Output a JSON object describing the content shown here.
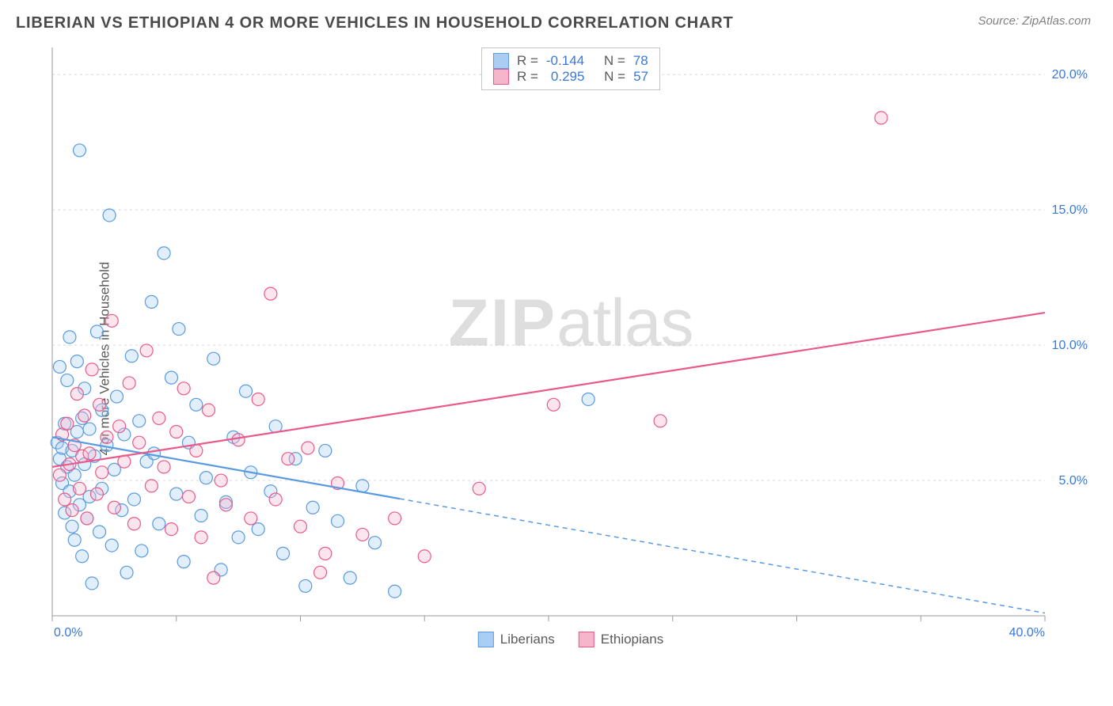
{
  "header": {
    "title": "LIBERIAN VS ETHIOPIAN 4 OR MORE VEHICLES IN HOUSEHOLD CORRELATION CHART",
    "source": "Source: ZipAtlas.com"
  },
  "chart": {
    "type": "scatter",
    "ylabel": "4 or more Vehicles in Household",
    "watermark_zip": "ZIP",
    "watermark_atlas": "atlas",
    "xlim": [
      0,
      40
    ],
    "ylim": [
      0,
      21
    ],
    "x_ticks": [
      0,
      5,
      10,
      15,
      20,
      25,
      30,
      35,
      40
    ],
    "x_tick_labels": [
      "0.0%",
      "",
      "",
      "",
      "",
      "",
      "",
      "",
      "40.0%"
    ],
    "y_ticks": [
      5,
      10,
      15,
      20
    ],
    "y_tick_labels": [
      "5.0%",
      "10.0%",
      "15.0%",
      "20.0%"
    ],
    "grid_color": "#d8d8d8",
    "axis_color": "#9a9a9a",
    "background_color": "#ffffff",
    "marker_radius": 8,
    "marker_stroke_width": 1.2,
    "marker_fill_opacity": 0.35,
    "trend_line_width": 2.2,
    "x_tick_label_color": "#3a78d6",
    "y_tick_label_color": "#3a78d6",
    "tick_label_fontsize": 16
  },
  "series": {
    "liberians": {
      "label": "Liberians",
      "color_stroke": "#5a9ae0",
      "color_fill": "#a9cdf3",
      "R": "-0.144",
      "N": "78",
      "trend": {
        "x1": 0,
        "y1": 6.6,
        "x2": 40,
        "y2": 0.1,
        "solid_until_x": 14
      },
      "points": [
        [
          0.2,
          6.4
        ],
        [
          0.3,
          5.8
        ],
        [
          0.3,
          9.2
        ],
        [
          0.4,
          4.9
        ],
        [
          0.4,
          6.2
        ],
        [
          0.5,
          7.1
        ],
        [
          0.5,
          3.8
        ],
        [
          0.6,
          5.5
        ],
        [
          0.6,
          8.7
        ],
        [
          0.7,
          10.3
        ],
        [
          0.7,
          4.6
        ],
        [
          0.8,
          3.3
        ],
        [
          0.8,
          6.1
        ],
        [
          0.9,
          2.8
        ],
        [
          0.9,
          5.2
        ],
        [
          1.0,
          9.4
        ],
        [
          1.0,
          6.8
        ],
        [
          1.1,
          17.2
        ],
        [
          1.1,
          4.1
        ],
        [
          1.2,
          7.3
        ],
        [
          1.2,
          2.2
        ],
        [
          1.3,
          5.6
        ],
        [
          1.3,
          8.4
        ],
        [
          1.4,
          3.6
        ],
        [
          1.5,
          6.9
        ],
        [
          1.5,
          4.4
        ],
        [
          1.6,
          1.2
        ],
        [
          1.7,
          5.9
        ],
        [
          1.8,
          10.5
        ],
        [
          1.9,
          3.1
        ],
        [
          2.0,
          7.6
        ],
        [
          2.0,
          4.7
        ],
        [
          2.2,
          6.3
        ],
        [
          2.3,
          14.8
        ],
        [
          2.4,
          2.6
        ],
        [
          2.5,
          5.4
        ],
        [
          2.6,
          8.1
        ],
        [
          2.8,
          3.9
        ],
        [
          2.9,
          6.7
        ],
        [
          3.0,
          1.6
        ],
        [
          3.2,
          9.6
        ],
        [
          3.3,
          4.3
        ],
        [
          3.5,
          7.2
        ],
        [
          3.6,
          2.4
        ],
        [
          3.8,
          5.7
        ],
        [
          4.0,
          11.6
        ],
        [
          4.1,
          6.0
        ],
        [
          4.3,
          3.4
        ],
        [
          4.5,
          13.4
        ],
        [
          4.8,
          8.8
        ],
        [
          5.0,
          4.5
        ],
        [
          5.1,
          10.6
        ],
        [
          5.3,
          2.0
        ],
        [
          5.5,
          6.4
        ],
        [
          5.8,
          7.8
        ],
        [
          6.0,
          3.7
        ],
        [
          6.2,
          5.1
        ],
        [
          6.5,
          9.5
        ],
        [
          6.8,
          1.7
        ],
        [
          7.0,
          4.2
        ],
        [
          7.3,
          6.6
        ],
        [
          7.5,
          2.9
        ],
        [
          7.8,
          8.3
        ],
        [
          8.0,
          5.3
        ],
        [
          8.3,
          3.2
        ],
        [
          8.8,
          4.6
        ],
        [
          9.0,
          7.0
        ],
        [
          9.3,
          2.3
        ],
        [
          9.8,
          5.8
        ],
        [
          10.2,
          1.1
        ],
        [
          10.5,
          4.0
        ],
        [
          11.0,
          6.1
        ],
        [
          11.5,
          3.5
        ],
        [
          12.0,
          1.4
        ],
        [
          12.5,
          4.8
        ],
        [
          13.0,
          2.7
        ],
        [
          13.8,
          0.9
        ],
        [
          21.6,
          8.0
        ]
      ]
    },
    "ethiopians": {
      "label": "Ethiopians",
      "color_stroke": "#e85a8a",
      "color_fill": "#f5b5cb",
      "R": "0.295",
      "N": "57",
      "trend": {
        "x1": 0,
        "y1": 5.5,
        "x2": 40,
        "y2": 11.2,
        "solid_until_x": 40
      },
      "points": [
        [
          0.3,
          5.2
        ],
        [
          0.4,
          6.7
        ],
        [
          0.5,
          4.3
        ],
        [
          0.6,
          7.1
        ],
        [
          0.7,
          5.6
        ],
        [
          0.8,
          3.9
        ],
        [
          0.9,
          6.3
        ],
        [
          1.0,
          8.2
        ],
        [
          1.1,
          4.7
        ],
        [
          1.2,
          5.9
        ],
        [
          1.3,
          7.4
        ],
        [
          1.4,
          3.6
        ],
        [
          1.5,
          6.0
        ],
        [
          1.6,
          9.1
        ],
        [
          1.8,
          4.5
        ],
        [
          1.9,
          7.8
        ],
        [
          2.0,
          5.3
        ],
        [
          2.2,
          6.6
        ],
        [
          2.4,
          10.9
        ],
        [
          2.5,
          4.0
        ],
        [
          2.7,
          7.0
        ],
        [
          2.9,
          5.7
        ],
        [
          3.1,
          8.6
        ],
        [
          3.3,
          3.4
        ],
        [
          3.5,
          6.4
        ],
        [
          3.8,
          9.8
        ],
        [
          4.0,
          4.8
        ],
        [
          4.3,
          7.3
        ],
        [
          4.5,
          5.5
        ],
        [
          4.8,
          3.2
        ],
        [
          5.0,
          6.8
        ],
        [
          5.3,
          8.4
        ],
        [
          5.5,
          4.4
        ],
        [
          5.8,
          6.1
        ],
        [
          6.0,
          2.9
        ],
        [
          6.3,
          7.6
        ],
        [
          6.8,
          5.0
        ],
        [
          7.0,
          4.1
        ],
        [
          7.5,
          6.5
        ],
        [
          8.0,
          3.6
        ],
        [
          8.3,
          8.0
        ],
        [
          8.8,
          11.9
        ],
        [
          9.0,
          4.3
        ],
        [
          9.5,
          5.8
        ],
        [
          10.0,
          3.3
        ],
        [
          10.3,
          6.2
        ],
        [
          10.8,
          1.6
        ],
        [
          11.0,
          2.3
        ],
        [
          11.5,
          4.9
        ],
        [
          12.5,
          3.0
        ],
        [
          13.8,
          3.6
        ],
        [
          15.0,
          2.2
        ],
        [
          17.2,
          4.7
        ],
        [
          20.2,
          7.8
        ],
        [
          24.5,
          7.2
        ],
        [
          33.4,
          18.4
        ],
        [
          6.5,
          1.4
        ]
      ]
    }
  },
  "stats_legend": {
    "R_label": "R =",
    "N_label": "N ="
  }
}
